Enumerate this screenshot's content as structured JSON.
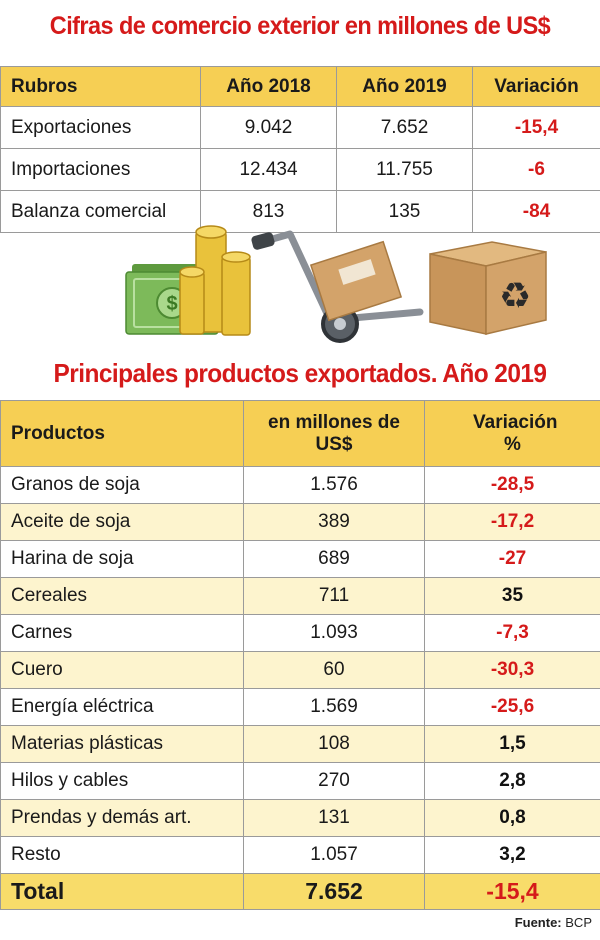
{
  "title1": "Cifras de comercio exterior en millones de US$",
  "table1": {
    "headers": [
      "Rubros",
      "Año  2018",
      "Año 2019",
      "Variación"
    ],
    "rows": [
      {
        "label": "Exportaciones",
        "y2018": "9.042",
        "y2019": "7.652",
        "variacion": "-15,4"
      },
      {
        "label": "Importaciones",
        "y2018": "12.434",
        "y2019": "11.755",
        "variacion": "-6"
      },
      {
        "label": "Balanza comercial",
        "y2018": "813",
        "y2019": "135",
        "variacion": "-84"
      }
    ]
  },
  "illustration": {
    "icons": [
      "money-bills-icon",
      "gold-coins-icon",
      "hand-truck-icon",
      "recycle-box-icon"
    ],
    "colors": {
      "money": "#7dba5a",
      "coins": "#e9c23b",
      "box": "#d3a36a"
    }
  },
  "title2": "Principales productos exportados. Año 2019",
  "table2": {
    "headers": [
      "Productos",
      "en millones de US$",
      "Variación %"
    ],
    "rows": [
      {
        "label": "Granos de soja",
        "valor": "1.576",
        "variacion": "-28,5"
      },
      {
        "label": "Aceite de soja",
        "valor": "389",
        "variacion": "-17,2"
      },
      {
        "label": "Harina de soja",
        "valor": "689",
        "variacion": "-27"
      },
      {
        "label": "Cereales",
        "valor": "711",
        "variacion": "35"
      },
      {
        "label": "Carnes",
        "valor": "1.093",
        "variacion": "-7,3"
      },
      {
        "label": "Cuero",
        "valor": "60",
        "variacion": "-30,3"
      },
      {
        "label": "Energía eléctrica",
        "valor": "1.569",
        "variacion": "-25,6"
      },
      {
        "label": "Materias plásticas",
        "valor": "108",
        "variacion": "1,5"
      },
      {
        "label": "Hilos y cables",
        "valor": "270",
        "variacion": "2,8"
      },
      {
        "label": "Prendas y demás art.",
        "valor": "131",
        "variacion": "0,8"
      },
      {
        "label": "Resto",
        "valor": "1.057",
        "variacion": "3,2"
      }
    ],
    "total": {
      "label": "Total",
      "valor": "7.652",
      "variacion": "-15,4"
    }
  },
  "source": {
    "label": "Fuente:",
    "value": "BCP"
  },
  "colors": {
    "title_red": "#d51a1a",
    "header_yellow": "#f6cf54",
    "row_tint": "#fdf4ce",
    "total_yellow": "#f8dc6a"
  }
}
